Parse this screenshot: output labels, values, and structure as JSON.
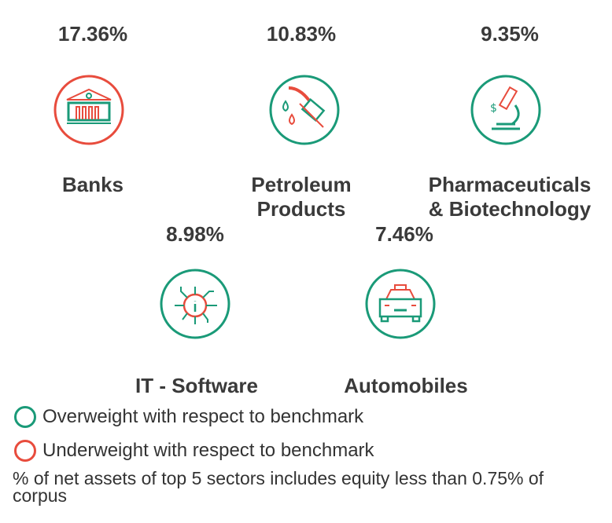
{
  "colors": {
    "overweight": "#1a9a78",
    "underweight": "#e84c3d"
  },
  "sectors": [
    {
      "name": "Banks",
      "name2": "",
      "percent": "17.36%",
      "icon": "bank-icon",
      "status": "underweight"
    },
    {
      "name": "Petroleum",
      "name2": "Products",
      "percent": "10.83%",
      "icon": "fuel-nozzle-icon",
      "status": "overweight"
    },
    {
      "name": "Pharmaceuticals",
      "name2": "& Biotechnology",
      "percent": "9.35%",
      "icon": "microscope-icon",
      "status": "overweight"
    },
    {
      "name": "IT - Software",
      "name2": "",
      "percent": "8.98%",
      "icon": "chip-icon",
      "status": "overweight"
    },
    {
      "name": "Automobiles",
      "name2": "",
      "percent": "7.46%",
      "icon": "car-icon",
      "status": "overweight"
    }
  ],
  "legend": {
    "overweight": "Overweight with respect to benchmark",
    "underweight": "Underweight with respect to benchmark"
  },
  "footnote": "% of net assets of top 5 sectors includes equity less than 0.75% of corpus"
}
